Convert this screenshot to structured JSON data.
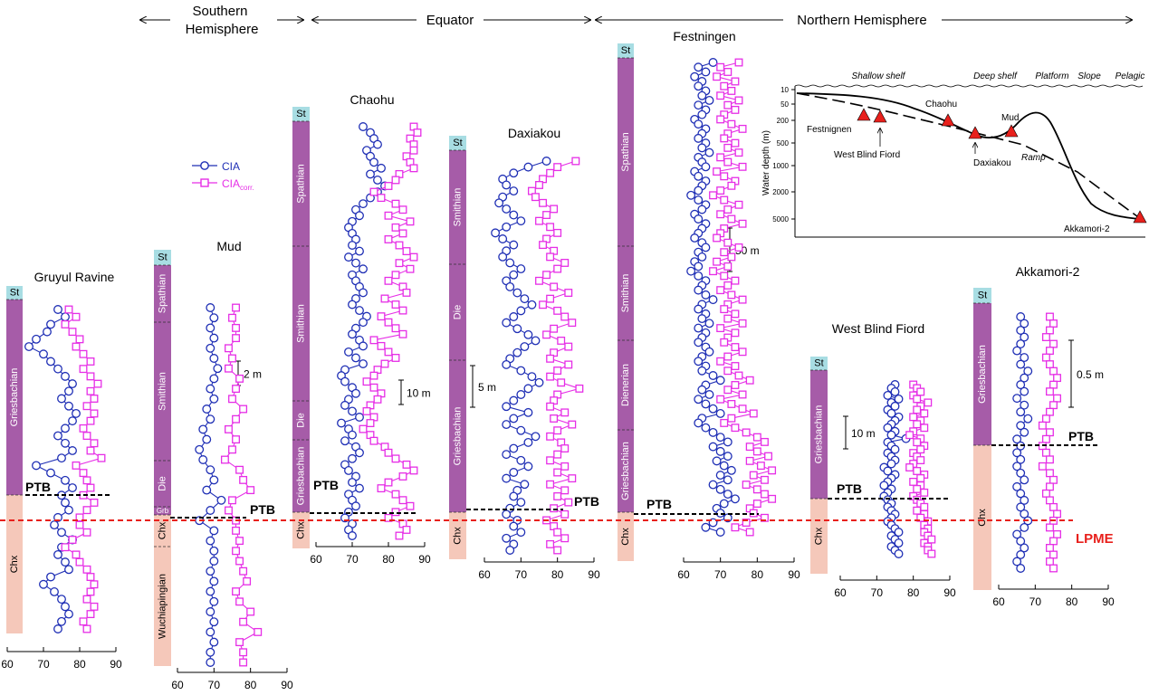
{
  "regions": [
    {
      "label": "Southern Hemisphere",
      "line1": "Southern",
      "line2": "Hemisphere"
    },
    {
      "label": "Equator"
    },
    {
      "label": "Northern Hemisphere"
    }
  ],
  "legend": {
    "cia": "CIA",
    "cia_corr": "CIA",
    "cia_corr_sub": "corr."
  },
  "colors": {
    "cia": "#1f2fb5",
    "cia_corr": "#e62ee6",
    "stage_st": "#a8dde3",
    "stage_main": "#a65ca8",
    "stage_chx": "#f5c8ba",
    "ptb_line": "#000000",
    "lpme_line": "#e8201c",
    "marker": "#e8201c"
  },
  "boundaries": {
    "ptb": "PTB",
    "lpme": "LPME"
  },
  "chart_data": [
    {
      "type": "line",
      "section": "Gruyul Ravine",
      "xlim": [
        60,
        90
      ],
      "xticks": [
        "60",
        "70",
        "80",
        "90"
      ],
      "stages": [
        "St",
        "Griesbachian",
        "Chx"
      ],
      "series": [
        {
          "name": "CIA",
          "values": [
            74,
            76,
            72,
            71,
            68,
            66,
            70,
            72,
            74,
            76,
            78,
            77,
            75,
            77,
            79,
            78,
            76,
            74,
            76,
            78,
            75,
            68,
            72,
            76,
            78,
            75,
            76,
            77,
            74,
            73,
            75,
            78,
            75,
            74,
            76,
            77,
            72,
            70,
            73,
            75,
            76,
            77,
            75,
            74
          ]
        },
        {
          "name": "CIA corr.",
          "values": [
            77,
            79,
            76,
            78,
            80,
            79,
            81,
            83,
            81,
            83,
            85,
            83,
            84,
            82,
            84,
            83,
            81,
            82,
            84,
            83,
            86,
            79,
            81,
            82,
            83,
            81,
            84,
            82,
            80,
            80,
            82,
            78,
            76,
            79,
            80,
            82,
            83,
            84,
            83,
            82,
            84,
            83,
            81,
            82
          ]
        }
      ]
    },
    {
      "type": "line",
      "section": "Mud",
      "xlim": [
        60,
        90
      ],
      "xticks": [
        "60",
        "70",
        "80",
        "90"
      ],
      "stages": [
        "St",
        "Spathian",
        "Smithian",
        "Die",
        "Grb",
        "Chx",
        "Wuchiapingian"
      ],
      "scale": "2 m",
      "series": [
        {
          "name": "CIA",
          "values": [
            69,
            70,
            69,
            70,
            69,
            70,
            71,
            70,
            69,
            70,
            68,
            69,
            67,
            68,
            66,
            67,
            69,
            70,
            68,
            72,
            69,
            66,
            70,
            69,
            70,
            70,
            69,
            70,
            69,
            70,
            69,
            70,
            69,
            70,
            69,
            69
          ]
        },
        {
          "name": "CIA corr.",
          "values": [
            76,
            75,
            76,
            76,
            74,
            75,
            74,
            77,
            76,
            75,
            78,
            76,
            74,
            76,
            75,
            73,
            77,
            78,
            80,
            75,
            74,
            76,
            76,
            77,
            76,
            77,
            78,
            79,
            76,
            77,
            80,
            78,
            82,
            77,
            78,
            78
          ]
        }
      ]
    },
    {
      "type": "line",
      "section": "Chaohu",
      "xlim": [
        60,
        90
      ],
      "xticks": [
        "60",
        "70",
        "80",
        "90"
      ],
      "stages": [
        "St",
        "Spathian",
        "Smithian",
        "Die",
        "Griesbachian",
        "Chx"
      ],
      "scale": "10 m",
      "series": [
        {
          "name": "CIA",
          "values": [
            73,
            75,
            76,
            77,
            74,
            75,
            76,
            78,
            75,
            77,
            79,
            77,
            75,
            73,
            71,
            72,
            70,
            69,
            70,
            71,
            70,
            72,
            69,
            71,
            73,
            70,
            71,
            72,
            73,
            71,
            70,
            72,
            74,
            73,
            71,
            70,
            72,
            73,
            69,
            71,
            73,
            68,
            67,
            68,
            70,
            71,
            69,
            68,
            70,
            72,
            67,
            69,
            70,
            68,
            71,
            72,
            70,
            68,
            69,
            71,
            70,
            72,
            69,
            70,
            71,
            69,
            68,
            70,
            69,
            70
          ]
        },
        {
          "name": "CIA corr.",
          "values": [
            87,
            88,
            86,
            87,
            87,
            85,
            86,
            87,
            83,
            82,
            80,
            76,
            78,
            82,
            84,
            80,
            86,
            82,
            84,
            80,
            83,
            85,
            87,
            83,
            86,
            82,
            80,
            84,
            85,
            79,
            82,
            84,
            78,
            80,
            82,
            84,
            76,
            78,
            80,
            82,
            79,
            77,
            76,
            74,
            76,
            78,
            77,
            75,
            74,
            76,
            75,
            73,
            75,
            76,
            79,
            80,
            82,
            85,
            87,
            84,
            80,
            78,
            82,
            84,
            86,
            82,
            80,
            84,
            85,
            83
          ]
        }
      ]
    },
    {
      "type": "line",
      "section": "Daxiakou",
      "xlim": [
        60,
        90
      ],
      "xticks": [
        "60",
        "70",
        "80",
        "90"
      ],
      "stages": [
        "St",
        "Smithian",
        "Die",
        "Griesbachian",
        "Chx"
      ],
      "scale": "5 m",
      "series": [
        {
          "name": "CIA",
          "values": [
            77,
            72,
            68,
            65,
            66,
            68,
            65,
            64,
            66,
            68,
            70,
            66,
            63,
            65,
            68,
            66,
            65,
            67,
            70,
            68,
            66,
            67,
            69,
            71,
            73,
            70,
            68,
            66,
            69,
            72,
            74,
            71,
            69,
            67,
            66,
            70,
            73,
            75,
            72,
            70,
            68,
            66,
            72,
            68,
            66,
            70,
            74,
            72,
            68,
            66,
            70,
            72,
            68,
            66,
            71,
            69,
            68,
            70,
            67,
            66,
            69,
            68,
            70,
            66,
            68,
            67
          ]
        },
        {
          "name": "CIA corr.",
          "values": [
            85,
            80,
            78,
            76,
            75,
            73,
            74,
            76,
            79,
            77,
            75,
            78,
            80,
            77,
            76,
            79,
            78,
            82,
            80,
            77,
            75,
            79,
            83,
            78,
            76,
            80,
            82,
            84,
            79,
            77,
            81,
            83,
            79,
            78,
            83,
            80,
            78,
            81,
            86,
            80,
            79,
            78,
            82,
            79,
            84,
            80,
            78,
            81,
            82,
            80,
            78,
            82,
            80,
            84,
            78,
            82,
            80,
            83,
            79,
            82,
            77,
            79,
            80,
            82,
            78,
            80
          ]
        }
      ]
    },
    {
      "type": "line",
      "section": "Festningen",
      "xlim": [
        60,
        90
      ],
      "xticks": [
        "60",
        "70",
        "80",
        "90"
      ],
      "stages": [
        "St",
        "Spathian",
        "Smithian",
        "Dienerian",
        "Griesbachian",
        "Chx"
      ],
      "scale": "50 m",
      "series": [
        {
          "name": "CIA",
          "values": [
            68,
            64,
            66,
            63,
            65,
            64,
            66,
            65,
            67,
            64,
            66,
            65,
            63,
            64,
            66,
            65,
            64,
            66,
            65,
            67,
            64,
            65,
            66,
            63,
            64,
            66,
            65,
            64,
            62,
            64,
            66,
            65,
            63,
            64,
            66,
            65,
            64,
            63,
            65,
            66,
            64,
            65,
            63,
            64,
            62,
            64,
            66,
            65,
            64,
            66,
            68,
            65,
            64,
            66,
            65,
            67,
            64,
            66,
            65,
            64,
            66,
            67,
            65,
            64,
            66,
            65,
            68,
            70,
            66,
            65,
            67,
            64,
            66,
            68,
            70,
            65,
            64,
            66,
            68,
            70,
            72,
            68,
            70,
            72,
            69,
            71,
            73,
            70,
            72,
            68,
            70,
            72,
            74,
            71,
            69,
            70,
            72,
            68,
            66,
            70
          ]
        },
        {
          "name": "CIA corr.",
          "values": [
            75,
            70,
            72,
            69,
            74,
            71,
            73,
            70,
            75,
            72,
            74,
            71,
            70,
            73,
            76,
            72,
            71,
            74,
            72,
            75,
            70,
            72,
            76,
            69,
            71,
            74,
            73,
            70,
            68,
            71,
            75,
            72,
            70,
            73,
            76,
            71,
            70,
            69,
            72,
            75,
            71,
            73,
            69,
            72,
            68,
            71,
            74,
            72,
            70,
            73,
            76,
            72,
            71,
            74,
            72,
            76,
            70,
            74,
            72,
            71,
            74,
            76,
            72,
            70,
            74,
            72,
            75,
            78,
            74,
            72,
            76,
            70,
            73,
            76,
            79,
            73,
            71,
            74,
            77,
            80,
            82,
            78,
            80,
            83,
            78,
            81,
            84,
            79,
            82,
            77,
            80,
            82,
            84,
            80,
            78,
            79,
            82,
            77,
            74,
            78
          ]
        }
      ]
    },
    {
      "type": "line",
      "section": "West Blind Fiord",
      "xlim": [
        60,
        90
      ],
      "xticks": [
        "60",
        "70",
        "80",
        "90"
      ],
      "stages": [
        "St",
        "Griesbachian",
        "Chx"
      ],
      "scale": "10 m",
      "series": [
        {
          "name": "CIA",
          "values": [
            75,
            74,
            75,
            73,
            76,
            74,
            75,
            73,
            74,
            76,
            75,
            74,
            73,
            75,
            74,
            78,
            73,
            74,
            75,
            73,
            74,
            75,
            74,
            72,
            73,
            75,
            74,
            73,
            72,
            74,
            73,
            72,
            73,
            74,
            73,
            74,
            75,
            74,
            73,
            74,
            75,
            76,
            74,
            75,
            76,
            74,
            75,
            76
          ]
        },
        {
          "name": "CIA corr.",
          "values": [
            80,
            81,
            82,
            80,
            81,
            84,
            82,
            81,
            83,
            80,
            82,
            81,
            83,
            80,
            79,
            82,
            81,
            83,
            82,
            80,
            81,
            82,
            80,
            79,
            81,
            83,
            82,
            80,
            82,
            81,
            83,
            80,
            81,
            82,
            83,
            81,
            83,
            82,
            84,
            83,
            84,
            83,
            84,
            85,
            83,
            84,
            84,
            85
          ]
        }
      ]
    },
    {
      "type": "line",
      "section": "Akkamori-2",
      "xlim": [
        60,
        90
      ],
      "xticks": [
        "60",
        "70",
        "80",
        "90"
      ],
      "stages": [
        "St",
        "Griesbachian",
        "Chx"
      ],
      "scale": "0.5 m",
      "series": [
        {
          "name": "CIA",
          "values": [
            66,
            67,
            66,
            67,
            66,
            65,
            67,
            66,
            68,
            67,
            66,
            67,
            65,
            67,
            66,
            68,
            66,
            67,
            65,
            66,
            65,
            66,
            65,
            66,
            67,
            65,
            66,
            67,
            66,
            67,
            68,
            67,
            65,
            66,
            67,
            66,
            65,
            66
          ]
        },
        {
          "name": "CIA corr.",
          "values": [
            74,
            75,
            74,
            73,
            75,
            74,
            73,
            74,
            75,
            76,
            75,
            74,
            76,
            75,
            74,
            73,
            72,
            74,
            73,
            72,
            73,
            74,
            72,
            74,
            75,
            74,
            73,
            74,
            75,
            76,
            75,
            74,
            76,
            75,
            74,
            75,
            74,
            75
          ]
        }
      ]
    },
    {
      "type": "scatter",
      "section": "inset",
      "ylabel": "Water depth (m)",
      "yticks": [
        "10",
        "50",
        "200",
        "500",
        "1000",
        "2000",
        "5000"
      ],
      "zones": [
        "Shallow shelf",
        "Deep shelf",
        "Platform",
        "Slope",
        "Pelagic"
      ],
      "ramp_label": "Ramp",
      "sites": [
        "Festnignen",
        "West Blind Fiord",
        "Chaohu",
        "Daxiakou",
        "Mud",
        "Akkamori-2"
      ]
    }
  ]
}
